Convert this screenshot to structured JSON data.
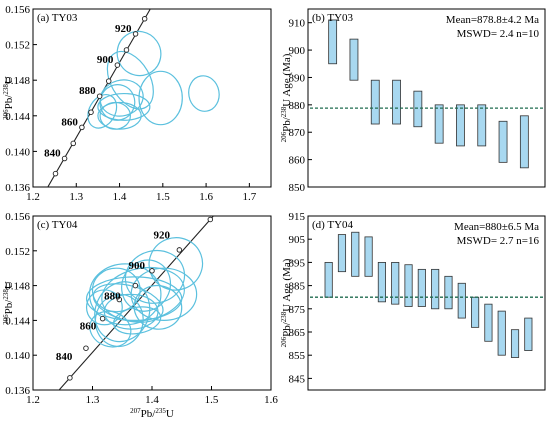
{
  "chart_data": [
    {
      "id": "a",
      "type": "scatter",
      "panel_label": "(a) TY03",
      "xlim": [
        1.2,
        1.75
      ],
      "ylim": [
        0.136,
        0.156
      ],
      "x_ticks": [
        "1.2",
        "1.3",
        "1.4",
        "1.5",
        "1.6",
        "1.7"
      ],
      "y_ticks": [
        "0.136",
        "0.140",
        "0.144",
        "0.148",
        "0.152",
        "0.156"
      ],
      "ylabel": "206Pb/238U",
      "ylabel_main": "Pb/",
      "ylabel_sup1": "206",
      "ylabel_sup2": "238",
      "ylabel_end": "U",
      "concordia_ages": [
        {
          "age": 840,
          "label": "840",
          "x": 1.273,
          "y": 0.1392
        },
        {
          "age": 860,
          "label": "860",
          "x": 1.313,
          "y": 0.1427
        },
        {
          "age": 880,
          "label": "880",
          "x": 1.354,
          "y": 0.1462
        },
        {
          "age": 900,
          "label": "900",
          "x": 1.395,
          "y": 0.1497
        },
        {
          "age": 920,
          "label": "920",
          "x": 1.437,
          "y": 0.1532
        }
      ],
      "concordia_markers": [
        {
          "x": 1.252,
          "y": 0.1375
        },
        {
          "x": 1.273,
          "y": 0.1392
        },
        {
          "x": 1.293,
          "y": 0.1409
        },
        {
          "x": 1.313,
          "y": 0.1427
        },
        {
          "x": 1.334,
          "y": 0.1444
        },
        {
          "x": 1.354,
          "y": 0.1462
        },
        {
          "x": 1.375,
          "y": 0.1479
        },
        {
          "x": 1.395,
          "y": 0.1497
        },
        {
          "x": 1.416,
          "y": 0.1514
        },
        {
          "x": 1.437,
          "y": 0.1532
        },
        {
          "x": 1.458,
          "y": 0.1549
        }
      ],
      "ellipses": [
        {
          "cx": 1.445,
          "cy": 0.151,
          "rx": 0.05,
          "ry": 0.0025,
          "rot": -35
        },
        {
          "cx": 1.425,
          "cy": 0.148,
          "rx": 0.045,
          "ry": 0.0035,
          "rot": -30
        },
        {
          "cx": 1.405,
          "cy": 0.146,
          "rx": 0.05,
          "ry": 0.002,
          "rot": -15
        },
        {
          "cx": 1.41,
          "cy": 0.145,
          "rx": 0.06,
          "ry": 0.0015,
          "rot": 0
        },
        {
          "cx": 1.4,
          "cy": 0.144,
          "rx": 0.05,
          "ry": 0.0015,
          "rot": 0
        },
        {
          "cx": 1.495,
          "cy": 0.146,
          "rx": 0.05,
          "ry": 0.003,
          "rot": 0
        },
        {
          "cx": 1.395,
          "cy": 0.1455,
          "rx": 0.04,
          "ry": 0.002,
          "rot": 20
        },
        {
          "cx": 1.39,
          "cy": 0.144,
          "rx": 0.035,
          "ry": 0.0015,
          "rot": 0
        },
        {
          "cx": 1.595,
          "cy": 0.1465,
          "rx": 0.035,
          "ry": 0.002,
          "rot": -10
        },
        {
          "cx": 1.36,
          "cy": 0.1445,
          "rx": 0.03,
          "ry": 0.002,
          "rot": 30
        }
      ]
    },
    {
      "id": "b",
      "type": "bar",
      "panel_label": "(b) TY03",
      "ylim": [
        850,
        915
      ],
      "y_ticks": [
        "850",
        "860",
        "870",
        "880",
        "890",
        "900",
        "910"
      ],
      "ylabel": "206Pb/238U Age (Ma)",
      "ylabel_sup1": "206",
      "ylabel_main": "Pb/",
      "ylabel_sup2": "238",
      "ylabel_end": "U Age (Ma)",
      "mean_text": "Mean=878.8±4.2 Ma",
      "mswd_text": "MSWD= 2.4   n=10",
      "mean": 878.8,
      "bars": [
        {
          "low": 895,
          "high": 911
        },
        {
          "low": 889,
          "high": 904
        },
        {
          "low": 873,
          "high": 889
        },
        {
          "low": 873,
          "high": 889
        },
        {
          "low": 872,
          "high": 885
        },
        {
          "low": 866,
          "high": 880
        },
        {
          "low": 865,
          "high": 880
        },
        {
          "low": 865,
          "high": 880
        },
        {
          "low": 859,
          "high": 874
        },
        {
          "low": 857,
          "high": 876
        }
      ]
    },
    {
      "id": "c",
      "type": "scatter",
      "panel_label": "(c) TY04",
      "xlim": [
        1.2,
        1.6
      ],
      "ylim": [
        0.136,
        0.156
      ],
      "x_ticks": [
        "1.2",
        "1.3",
        "1.4",
        "1.5",
        "1.6"
      ],
      "y_ticks": [
        "0.136",
        "0.140",
        "0.144",
        "0.148",
        "0.152",
        "0.156"
      ],
      "xlabel": "207Pb/235U",
      "xlabel_sup1": "207",
      "xlabel_main": "Pb/",
      "xlabel_sup2": "235",
      "xlabel_end": "U",
      "ylabel": "206Pb/238U",
      "ylabel_main": "Pb/",
      "ylabel_sup1": "206",
      "ylabel_sup2": "238",
      "ylabel_end": "U",
      "concordia_ages": [
        {
          "age": 840,
          "label": "840",
          "x": 1.273,
          "y": 0.1392
        },
        {
          "age": 860,
          "label": "860",
          "x": 1.313,
          "y": 0.1427
        },
        {
          "age": 880,
          "label": "880",
          "x": 1.354,
          "y": 0.1462
        },
        {
          "age": 900,
          "label": "900",
          "x": 1.395,
          "y": 0.1497
        },
        {
          "age": 920,
          "label": "920",
          "x": 1.437,
          "y": 0.1532
        }
      ],
      "concordia_markers": [
        {
          "x": 1.262,
          "y": 0.1374
        },
        {
          "x": 1.289,
          "y": 0.1408
        },
        {
          "x": 1.317,
          "y": 0.1442
        },
        {
          "x": 1.345,
          "y": 0.1464
        },
        {
          "x": 1.372,
          "y": 0.148
        },
        {
          "x": 1.4,
          "y": 0.1497
        },
        {
          "x": 1.446,
          "y": 0.1521
        },
        {
          "x": 1.498,
          "y": 0.1556
        }
      ],
      "ellipses": [
        {
          "cx": 1.44,
          "cy": 0.1505,
          "rx": 0.045,
          "ry": 0.003,
          "rot": -20
        },
        {
          "cx": 1.405,
          "cy": 0.149,
          "rx": 0.05,
          "ry": 0.003,
          "rot": -15
        },
        {
          "cx": 1.385,
          "cy": 0.147,
          "rx": 0.07,
          "ry": 0.003,
          "rot": -10
        },
        {
          "cx": 1.37,
          "cy": 0.1465,
          "rx": 0.08,
          "ry": 0.0025,
          "rot": 0
        },
        {
          "cx": 1.36,
          "cy": 0.146,
          "rx": 0.06,
          "ry": 0.002,
          "rot": 15
        },
        {
          "cx": 1.35,
          "cy": 0.145,
          "rx": 0.045,
          "ry": 0.0035,
          "rot": 25
        },
        {
          "cx": 1.345,
          "cy": 0.144,
          "rx": 0.04,
          "ry": 0.003,
          "rot": 10
        },
        {
          "cx": 1.33,
          "cy": 0.143,
          "rx": 0.035,
          "ry": 0.002,
          "rot": 20
        },
        {
          "cx": 1.42,
          "cy": 0.147,
          "rx": 0.055,
          "ry": 0.003,
          "rot": 0
        },
        {
          "cx": 1.365,
          "cy": 0.145,
          "rx": 0.045,
          "ry": 0.002,
          "rot": 0
        },
        {
          "cx": 1.39,
          "cy": 0.148,
          "rx": 0.04,
          "ry": 0.003,
          "rot": 30
        },
        {
          "cx": 1.34,
          "cy": 0.1475,
          "rx": 0.04,
          "ry": 0.0025,
          "rot": 0
        },
        {
          "cx": 1.375,
          "cy": 0.144,
          "rx": 0.04,
          "ry": 0.0015,
          "rot": -10
        },
        {
          "cx": 1.41,
          "cy": 0.1455,
          "rx": 0.04,
          "ry": 0.0025,
          "rot": 10
        },
        {
          "cx": 1.355,
          "cy": 0.147,
          "rx": 0.06,
          "ry": 0.0035,
          "rot": 0
        },
        {
          "cx": 1.32,
          "cy": 0.1455,
          "rx": 0.03,
          "ry": 0.002,
          "rot": 0
        }
      ]
    },
    {
      "id": "d",
      "type": "bar",
      "panel_label": "(d) TY04",
      "ylim": [
        840,
        915
      ],
      "y_ticks": [
        "845",
        "855",
        "865",
        "875",
        "885",
        "895",
        "905",
        "915"
      ],
      "ylabel": "206Pb/238U Age (Ma)",
      "ylabel_sup1": "206",
      "ylabel_main": "Pb/",
      "ylabel_sup2": "238",
      "ylabel_end": "U Age (Ma)",
      "mean_text": "Mean=880±6.5 Ma",
      "mswd_text": "MSWD= 2.7   n=16",
      "mean": 880,
      "bars": [
        {
          "low": 880,
          "high": 895
        },
        {
          "low": 891,
          "high": 907
        },
        {
          "low": 889,
          "high": 908
        },
        {
          "low": 889,
          "high": 906
        },
        {
          "low": 878,
          "high": 895
        },
        {
          "low": 877,
          "high": 895
        },
        {
          "low": 876,
          "high": 894
        },
        {
          "low": 876,
          "high": 892
        },
        {
          "low": 875,
          "high": 892
        },
        {
          "low": 875,
          "high": 889
        },
        {
          "low": 871,
          "high": 886
        },
        {
          "low": 867,
          "high": 880
        },
        {
          "low": 861,
          "high": 877
        },
        {
          "low": 855,
          "high": 874
        },
        {
          "low": 854,
          "high": 866
        },
        {
          "low": 857,
          "high": 871
        }
      ]
    }
  ],
  "colors": {
    "ellipse": "#5bc0de",
    "bar_fill": "#a8d8f0",
    "mean_line": "#1f6b4f"
  }
}
